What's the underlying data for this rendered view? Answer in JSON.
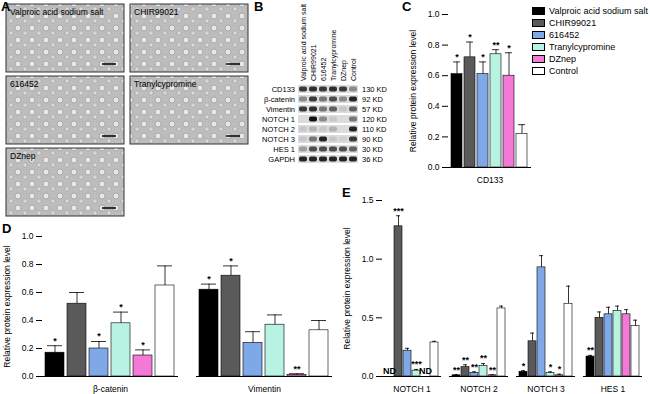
{
  "chart_data": [
    {
      "panel": "C",
      "type": "bar",
      "y_label": "Relative protein expression level",
      "categories": [
        "CD133"
      ],
      "ylim": [
        0,
        1
      ],
      "yticks": [
        {
          "value": 0,
          "label": "0.0"
        },
        0.2,
        0.4,
        0.6,
        0.8,
        {
          "value": 1,
          "label": "1.0"
        }
      ],
      "legend": "top-right",
      "series": [
        {
          "name": "Valproic acid sodium salt",
          "color": "#000000",
          "values": [
            0.61
          ],
          "errors": [
            0.08
          ],
          "significance": [
            "*"
          ]
        },
        {
          "name": "CHIR99021",
          "color": "#5a5a5a",
          "values": [
            0.72
          ],
          "errors": [
            0.1
          ],
          "significance": [
            "*"
          ]
        },
        {
          "name": "616452",
          "color": "#7fa8e6",
          "values": [
            0.61
          ],
          "errors": [
            0.08
          ],
          "significance": [
            "*"
          ]
        },
        {
          "name": "Tranylcypromine",
          "color": "#b8f2e2",
          "values": [
            0.74
          ],
          "errors": [
            0.03
          ],
          "significance": [
            "**"
          ]
        },
        {
          "name": "DZnep",
          "color": "#f27ad6",
          "values": [
            0.6
          ],
          "errors": [
            0.15
          ],
          "significance": [
            "*"
          ]
        },
        {
          "name": "Control",
          "color": "#ffffff",
          "values": [
            0.22
          ],
          "errors": [
            0.06
          ],
          "significance": [
            null
          ]
        }
      ]
    },
    {
      "panel": "D",
      "type": "bar",
      "y_label": "Relative protein expression level",
      "categories": [
        "β-catenin",
        "Vimentin"
      ],
      "ylim": [
        0,
        1
      ],
      "yticks": [
        {
          "value": 0,
          "label": "0.0"
        },
        0.2,
        0.4,
        0.6,
        0.8,
        {
          "value": 1,
          "label": "1.0"
        }
      ],
      "series": [
        {
          "name": "Valproic acid sodium salt",
          "color": "#000000",
          "values": [
            0.17,
            0.62
          ],
          "errors": [
            0.05,
            0.04
          ],
          "significance": [
            "*",
            "*"
          ]
        },
        {
          "name": "CHIR99021",
          "color": "#5a5a5a",
          "values": [
            0.52,
            0.72
          ],
          "errors": [
            0.08,
            0.07
          ],
          "significance": [
            null,
            "*"
          ]
        },
        {
          "name": "616452",
          "color": "#7fa8e6",
          "values": [
            0.2,
            0.24
          ],
          "errors": [
            0.05,
            0.08
          ],
          "significance": [
            "*",
            null
          ]
        },
        {
          "name": "Tranylcypromine",
          "color": "#b8f2e2",
          "values": [
            0.38,
            0.37
          ],
          "errors": [
            0.08,
            0.07
          ],
          "significance": [
            "*",
            null
          ]
        },
        {
          "name": "DZnep",
          "color": "#f27ad6",
          "values": [
            0.15,
            0.01
          ],
          "errors": [
            0.04,
            0.01
          ],
          "significance": [
            "*",
            "**"
          ]
        },
        {
          "name": "Control",
          "color": "#ffffff",
          "values": [
            0.65,
            0.33
          ],
          "errors": [
            0.14,
            0.07
          ],
          "significance": [
            null,
            null
          ]
        }
      ]
    },
    {
      "panel": "E",
      "type": "bar",
      "y_label": "Relative protein expression level",
      "categories": [
        "NOTCH 1",
        "NOTCH 2",
        "NOTCH 3",
        "HES 1"
      ],
      "ylim": [
        0,
        1.5
      ],
      "yticks": [
        {
          "value": 0,
          "label": "0.0"
        },
        0.5,
        {
          "value": 1,
          "label": "1.0"
        },
        1.5
      ],
      "series": [
        {
          "name": "Valproic acid sodium salt",
          "color": "#000000",
          "values": [
            null,
            0.01,
            0.04,
            0.17
          ],
          "errors": [
            null,
            0.005,
            0.01,
            0.01
          ],
          "significance": [
            "ND",
            "**",
            "*",
            "**"
          ]
        },
        {
          "name": "CHIR99021",
          "color": "#5a5a5a",
          "values": [
            1.28,
            0.08,
            0.3,
            0.5
          ],
          "errors": [
            0.09,
            0.02,
            0.07,
            0.05
          ],
          "significance": [
            "***",
            "**",
            null,
            null
          ]
        },
        {
          "name": "616452",
          "color": "#7fa8e6",
          "values": [
            0.22,
            0.03,
            0.93,
            0.53
          ],
          "errors": [
            0.02,
            0.01,
            0.1,
            0.06
          ],
          "significance": [
            null,
            "**",
            null,
            null
          ]
        },
        {
          "name": "Tranylcypromine",
          "color": "#b8f2e2",
          "values": [
            0.05,
            0.09,
            0.03,
            0.56
          ],
          "errors": [
            0.01,
            0.02,
            0.01,
            0.04
          ],
          "significance": [
            "***",
            "**",
            "*",
            null
          ]
        },
        {
          "name": "DZnep",
          "color": "#f27ad6",
          "values": [
            null,
            0.01,
            0.01,
            0.53
          ],
          "errors": [
            null,
            0.005,
            0.01,
            0.04
          ],
          "significance": [
            "ND",
            "**",
            "*",
            null
          ]
        },
        {
          "name": "Control",
          "color": "#ffffff",
          "values": [
            0.29,
            0.58,
            0.62,
            0.43
          ],
          "errors": [
            0.01,
            0.02,
            0.15,
            0.05
          ],
          "significance": [
            null,
            null,
            null,
            null
          ]
        }
      ]
    }
  ],
  "micrographs": {
    "panel": "A",
    "images": [
      "Valproic acid sodium salt",
      "CHIR99021",
      "616452",
      "Tranylcypromine",
      "DZnep"
    ]
  },
  "western_blot": {
    "panel": "B",
    "lanes": [
      "Valproic acid sodium salt",
      "CHIR99021",
      "616452",
      "Tranylcypromine",
      "DZnep",
      "Control"
    ],
    "rows": [
      {
        "label": "CD133",
        "size": "130 KD",
        "intensity": [
          0.8,
          0.85,
          0.8,
          0.85,
          0.8,
          0.4
        ]
      },
      {
        "label": "β-catenin",
        "size": "92 KD",
        "intensity": [
          0.4,
          0.8,
          0.5,
          0.7,
          0.4,
          0.9
        ]
      },
      {
        "label": "Vimentin",
        "size": "57 KD",
        "intensity": [
          0.8,
          0.85,
          0.5,
          0.6,
          0.1,
          0.6
        ]
      },
      {
        "label": "NOTCH 1",
        "size": "120 KD",
        "intensity": [
          0,
          1,
          0.4,
          0.1,
          0,
          0.5
        ]
      },
      {
        "label": "NOTCH 2",
        "size": "110 KD",
        "intensity": [
          0.1,
          0.2,
          0.1,
          0.2,
          0,
          0.9
        ]
      },
      {
        "label": "NOTCH 3",
        "size": "90 KD",
        "intensity": [
          0.1,
          0.5,
          0.9,
          0.1,
          0.05,
          0.8
        ]
      },
      {
        "label": "HES 1",
        "size": "30 KD",
        "intensity": [
          0.3,
          0.7,
          0.7,
          0.7,
          0.7,
          0.6
        ]
      },
      {
        "label": "GAPDH",
        "size": "36 KD",
        "intensity": [
          0.9,
          0.9,
          0.9,
          0.9,
          0.9,
          0.9
        ]
      }
    ]
  }
}
